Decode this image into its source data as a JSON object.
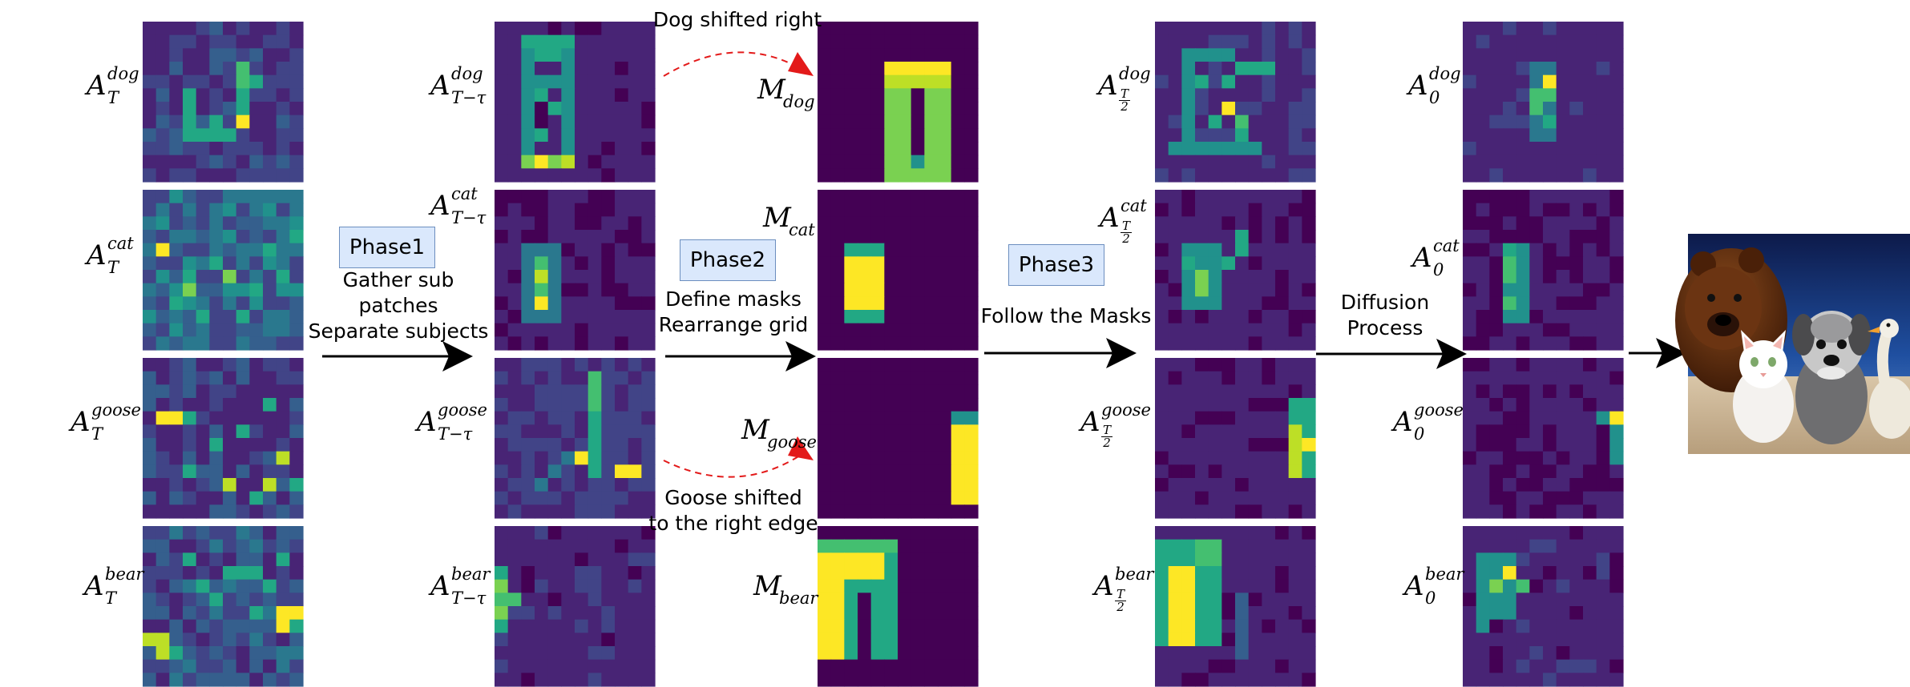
{
  "colormap": [
    "#440154",
    "#482475",
    "#414487",
    "#355f8d",
    "#2a788e",
    "#21918c",
    "#22a884",
    "#44bf70",
    "#7ad151",
    "#bddf26",
    "#fde725"
  ],
  "subjects": [
    "dog",
    "cat",
    "goose",
    "bear"
  ],
  "columns": [
    {
      "labels": [
        {
          "base": "A",
          "sup": "dog",
          "sub": "T"
        },
        {
          "base": "A",
          "sup": "cat",
          "sub": "T"
        },
        {
          "base": "A",
          "sup": "goose",
          "sub": "T"
        },
        {
          "base": "A",
          "sup": "bear",
          "sub": "T"
        }
      ]
    },
    {
      "labels": [
        {
          "base": "A",
          "sup": "dog",
          "sub": "T−τ"
        },
        {
          "base": "A",
          "sup": "cat",
          "sub": "T−τ"
        },
        {
          "base": "A",
          "sup": "goose",
          "sub": "T−τ"
        },
        {
          "base": "A",
          "sup": "bear",
          "sub": "T−τ"
        }
      ]
    },
    {
      "labels": [
        {
          "base": "M",
          "sub": "dog"
        },
        {
          "base": "M",
          "sub": "cat"
        },
        {
          "base": "M",
          "sub": "goose"
        },
        {
          "base": "M",
          "sub": "bear"
        }
      ]
    },
    {
      "labels": [
        {
          "base": "A",
          "sup": "dog",
          "frac": [
            "T",
            "2"
          ]
        },
        {
          "base": "A",
          "sup": "cat",
          "frac": [
            "T",
            "2"
          ]
        },
        {
          "base": "A",
          "sup": "goose",
          "frac": [
            "T",
            "2"
          ]
        },
        {
          "base": "A",
          "sup": "bear",
          "frac": [
            "T",
            "2"
          ]
        }
      ]
    },
    {
      "labels": [
        {
          "base": "A",
          "sup": "dog",
          "sub": "0"
        },
        {
          "base": "A",
          "sup": "cat",
          "sub": "0"
        },
        {
          "base": "A",
          "sup": "goose",
          "sub": "0"
        },
        {
          "base": "A",
          "sup": "bear",
          "sub": "0"
        }
      ]
    }
  ],
  "phases": [
    {
      "label": "Phase1",
      "caption": [
        "Gather sub",
        "patches",
        "Separate subjects"
      ]
    },
    {
      "label": "Phase2",
      "caption": [
        "Define masks",
        "Rearrange grid"
      ]
    },
    {
      "label": "Phase3",
      "caption": [
        "Follow the Masks"
      ]
    }
  ],
  "diffusion": {
    "caption": [
      "Diffusion",
      "Process"
    ]
  },
  "annotations": {
    "dog_shift": "Dog shifted right",
    "goose_shift": [
      "Goose shifted",
      "to the right edge"
    ]
  },
  "output_image": {
    "subjects": [
      "bear",
      "cat",
      "dog",
      "goose"
    ]
  }
}
